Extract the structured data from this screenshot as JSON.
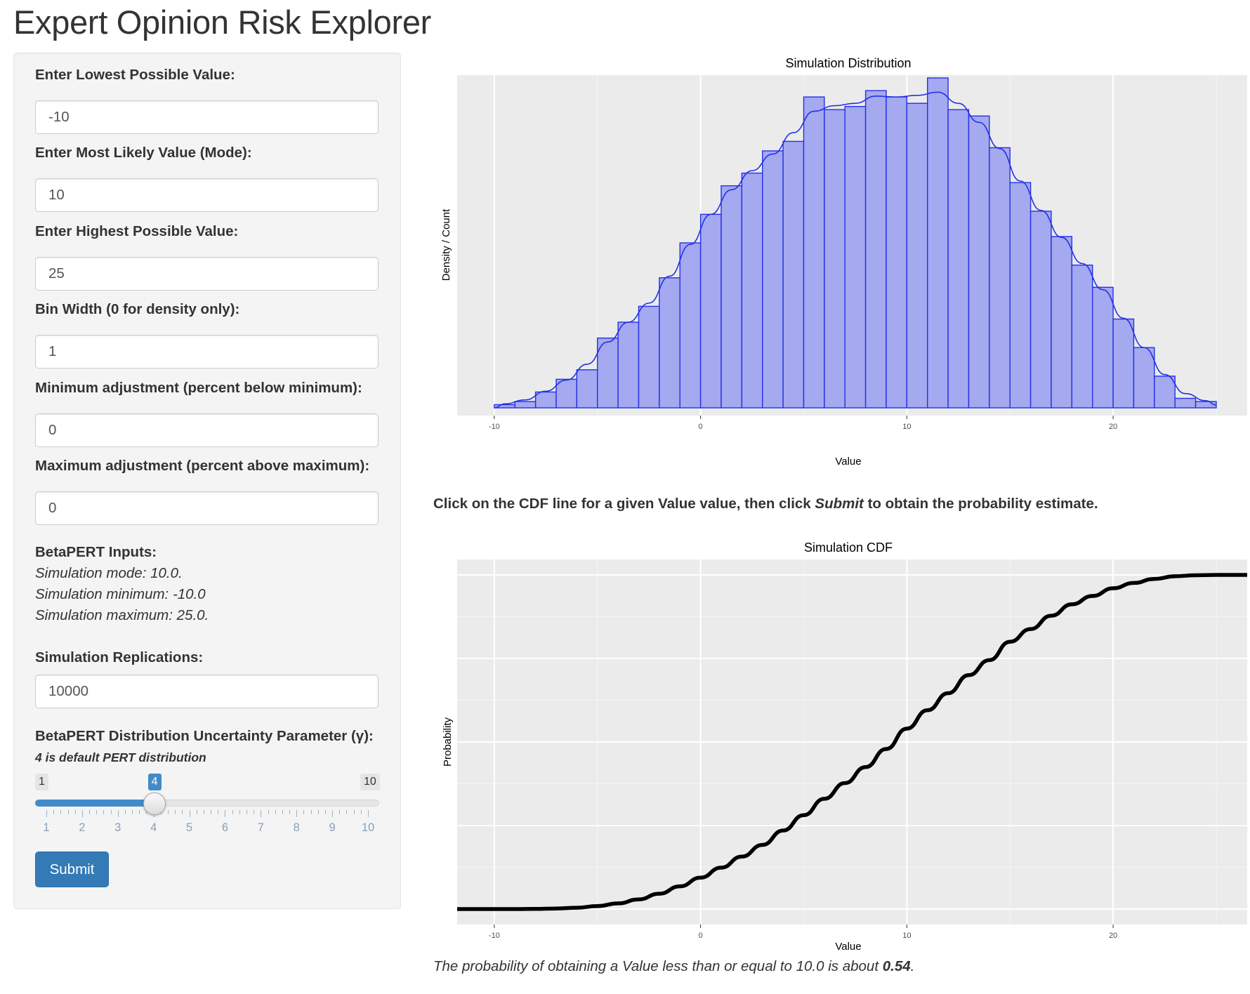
{
  "title": "Expert Opinion Risk Explorer",
  "inputs": {
    "lowest_label": "Enter Lowest Possible Value:",
    "lowest_value": "-10",
    "mode_label": "Enter Most Likely Value (Mode):",
    "mode_value": "10",
    "highest_label": "Enter Highest Possible Value:",
    "highest_value": "25",
    "bin_label": "Bin Width (0 for density only):",
    "bin_value": "1",
    "min_adj_label": "Minimum adjustment (percent below minimum):",
    "min_adj_value": "0",
    "max_adj_label": "Maximum adjustment (percent above maximum):",
    "max_adj_value": "0"
  },
  "betapert": {
    "heading": "BetaPERT Inputs:",
    "mode_line": "Simulation mode: 10.0.",
    "min_line": "Simulation minimum: -10.0",
    "max_line": "Simulation maximum: 25.0."
  },
  "replications": {
    "label": "Simulation Replications:",
    "value": "10000"
  },
  "slider": {
    "label": "BetaPERT Distribution Uncertainty Parameter (γ):",
    "note": "4 is default PERT distribution",
    "min": 1,
    "max": 10,
    "value": 4,
    "min_text": "1",
    "max_text": "10",
    "value_text": "4",
    "tick_labels": [
      "1",
      "2",
      "3",
      "4",
      "5",
      "6",
      "7",
      "8",
      "9",
      "10"
    ]
  },
  "submit_label": "Submit",
  "instruction": {
    "prefix": "Click on the CDF line for a given Value value, then click ",
    "emph": "Submit",
    "suffix": " to obtain the probability estimate."
  },
  "result": {
    "prefix": "The probability of obtaining a Value less than or equal to 10.0 is about ",
    "value": "0.54",
    "suffix": "."
  },
  "colors": {
    "accent": "#428bca",
    "button": "#337ab7",
    "hist_fill": "#a4a9f0",
    "hist_line": "#2431e6",
    "panel_bg": "#ebebeb"
  },
  "chart_data": [
    {
      "type": "bar",
      "title": "Simulation Distribution",
      "xlabel": "Value",
      "ylabel": "Density / Count",
      "xlim": [
        -11.8,
        26.5
      ],
      "x_ticks": [
        -10,
        0,
        10,
        20
      ],
      "bin_width": 1,
      "bins_start": [
        -10,
        -9,
        -8,
        -7,
        -6,
        -5,
        -4,
        -3,
        -2,
        -1,
        0,
        1,
        2,
        3,
        4,
        5,
        6,
        7,
        8,
        9,
        10,
        11,
        12,
        13,
        14,
        15,
        16,
        17,
        18,
        19,
        20,
        21,
        22,
        23,
        24
      ],
      "values": [
        1,
        2,
        5,
        9,
        12,
        22,
        27,
        32,
        41,
        52,
        61,
        70,
        74,
        81,
        84,
        98,
        94,
        95,
        100,
        98,
        96,
        104,
        94,
        92,
        82,
        71,
        62,
        54,
        45,
        38,
        28,
        19,
        10,
        3,
        2
      ],
      "density_curve": true,
      "grid": true
    },
    {
      "type": "line",
      "title": "Simulation CDF",
      "xlabel": "Value",
      "ylabel": "Probability",
      "xlim": [
        -11.8,
        26.5
      ],
      "ylim": [
        0,
        1
      ],
      "x_ticks": [
        -10,
        0,
        10,
        20
      ],
      "x": [
        -11.8,
        -10,
        -9,
        -8,
        -7,
        -6,
        -5,
        -4,
        -3,
        -2,
        -1,
        0,
        1,
        2,
        3,
        4,
        5,
        6,
        7,
        8,
        9,
        10,
        11,
        12,
        13,
        14,
        15,
        16,
        17,
        18,
        19,
        20,
        21,
        22,
        23,
        24,
        25,
        26.5
      ],
      "y": [
        0,
        0,
        0.0001,
        0.0005,
        0.0017,
        0.004,
        0.009,
        0.017,
        0.029,
        0.046,
        0.068,
        0.094,
        0.124,
        0.157,
        0.192,
        0.235,
        0.281,
        0.33,
        0.377,
        0.425,
        0.479,
        0.54,
        0.595,
        0.646,
        0.7,
        0.745,
        0.8,
        0.838,
        0.878,
        0.912,
        0.937,
        0.96,
        0.976,
        0.988,
        0.996,
        0.999,
        1,
        1
      ],
      "grid": true
    }
  ]
}
